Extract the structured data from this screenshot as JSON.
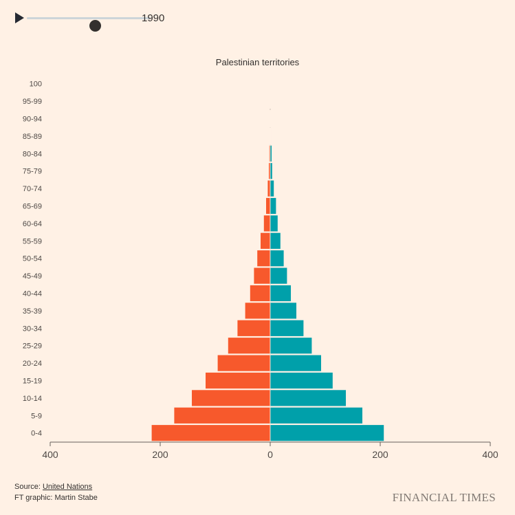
{
  "player": {
    "year": "1990",
    "progress": 0.55
  },
  "colors": {
    "male": "#f7592c",
    "female": "#00a0aa",
    "background": "#fff1e5"
  },
  "chart_data": {
    "type": "bar",
    "orientation": "horizontal-population-pyramid",
    "title": "Palestinian territories",
    "categories": [
      "100",
      "95-99",
      "90-94",
      "85-89",
      "80-84",
      "75-79",
      "70-74",
      "65-69",
      "60-64",
      "55-59",
      "50-54",
      "45-49",
      "40-44",
      "35-39",
      "30-34",
      "25-29",
      "20-24",
      "15-19",
      "10-14",
      "5-9",
      "0-4"
    ],
    "series": [
      {
        "color": "#f7592c",
        "side": "left",
        "values": [
          0,
          0,
          0.3,
          1,
          2,
          3,
          5,
          8,
          12,
          18,
          24,
          30,
          37,
          46,
          60,
          77,
          96,
          118,
          143,
          175,
          216
        ]
      },
      {
        "color": "#00a0aa",
        "side": "right",
        "values": [
          0,
          0,
          0.3,
          1,
          3,
          4,
          7,
          11,
          14,
          19,
          25,
          31,
          38,
          48,
          61,
          76,
          93,
          114,
          138,
          168,
          207
        ]
      }
    ],
    "xticks": [
      "400",
      "200",
      "0",
      "200",
      "400"
    ],
    "xlim": [
      -400,
      400
    ],
    "grid": false
  },
  "footer": {
    "source_prefix": "Source: ",
    "source_link": "United Nations",
    "credit": "FT graphic: Martin Stabe",
    "logo": "FINANCIAL TIMES"
  }
}
